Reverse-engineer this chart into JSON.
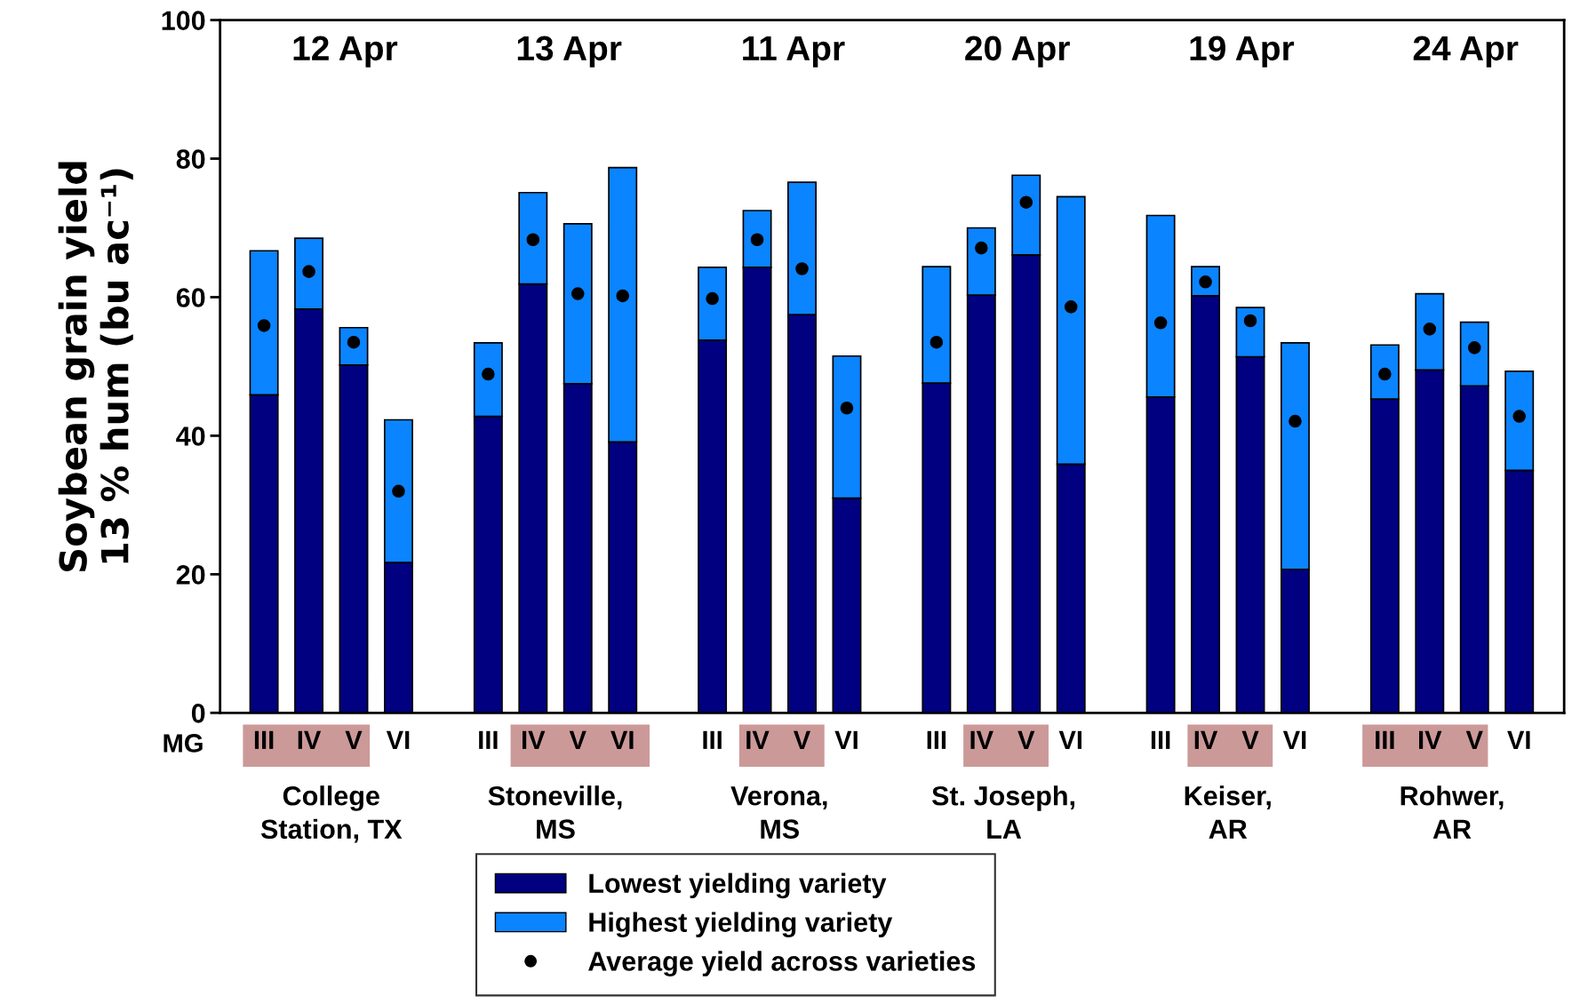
{
  "chart_data": {
    "type": "bar",
    "stacked": true,
    "ylabel": "Soybean grain yield\n13 % hum (bu ac⁻¹)",
    "categories": [
      "III",
      "IV",
      "V",
      "VI",
      null,
      "III",
      "IV",
      "V",
      "VI",
      null,
      "III",
      "IV",
      "V",
      "VI",
      null,
      "III",
      "IV",
      "V",
      "VI",
      null,
      "III",
      "IV",
      "V",
      "VI",
      null,
      "III",
      "IV",
      "V",
      "VI"
    ],
    "series": [
      {
        "name": "Lowest yielding variety",
        "color": "#000080",
        "values": [
          45.9,
          58.3,
          50.2,
          21.7,
          null,
          42.8,
          61.9,
          47.5,
          39.1,
          null,
          53.8,
          64.3,
          57.5,
          31.0,
          null,
          47.6,
          60.3,
          66.1,
          35.9,
          null,
          45.6,
          60.2,
          51.4,
          20.7,
          null,
          45.3,
          49.5,
          47.2,
          35.0
        ]
      },
      {
        "name": "Highest yielding variety",
        "color": "#0a84ff",
        "values": [
          20.8,
          10.2,
          5.4,
          20.6,
          null,
          10.6,
          13.2,
          23.1,
          39.6,
          null,
          10.5,
          8.2,
          19.1,
          20.5,
          null,
          16.8,
          9.7,
          11.5,
          38.6,
          null,
          26.2,
          4.2,
          7.1,
          32.7,
          null,
          7.8,
          11.0,
          9.2,
          14.3
        ]
      },
      {
        "name": "Average yield across varieties",
        "type": "scatter",
        "color": "#000000",
        "marker": "circle",
        "values": [
          55.9,
          63.7,
          53.5,
          32.0,
          null,
          48.9,
          68.3,
          60.5,
          60.2,
          null,
          59.8,
          68.3,
          64.1,
          44.0,
          null,
          53.5,
          67.1,
          73.7,
          58.6,
          null,
          56.3,
          62.2,
          56.6,
          42.1,
          null,
          48.9,
          55.4,
          52.7,
          42.8
        ]
      }
    ],
    "ylim": [
      0,
      100
    ],
    "yticks": [
      0,
      20,
      40,
      60,
      80,
      100
    ],
    "annotations": [
      "12 Apr",
      "13 Apr",
      "11 Apr",
      "20 Apr",
      "19 Apr",
      "24 Apr",
      "College\nStation, TX",
      "Stoneville,\nMS",
      "Verona,\nMS",
      "St. Joseph,\nLA",
      "Keiser,\nAR",
      "Rohwer,\nAR",
      "MG"
    ],
    "legend": "bottom",
    "grid": false
  }
}
